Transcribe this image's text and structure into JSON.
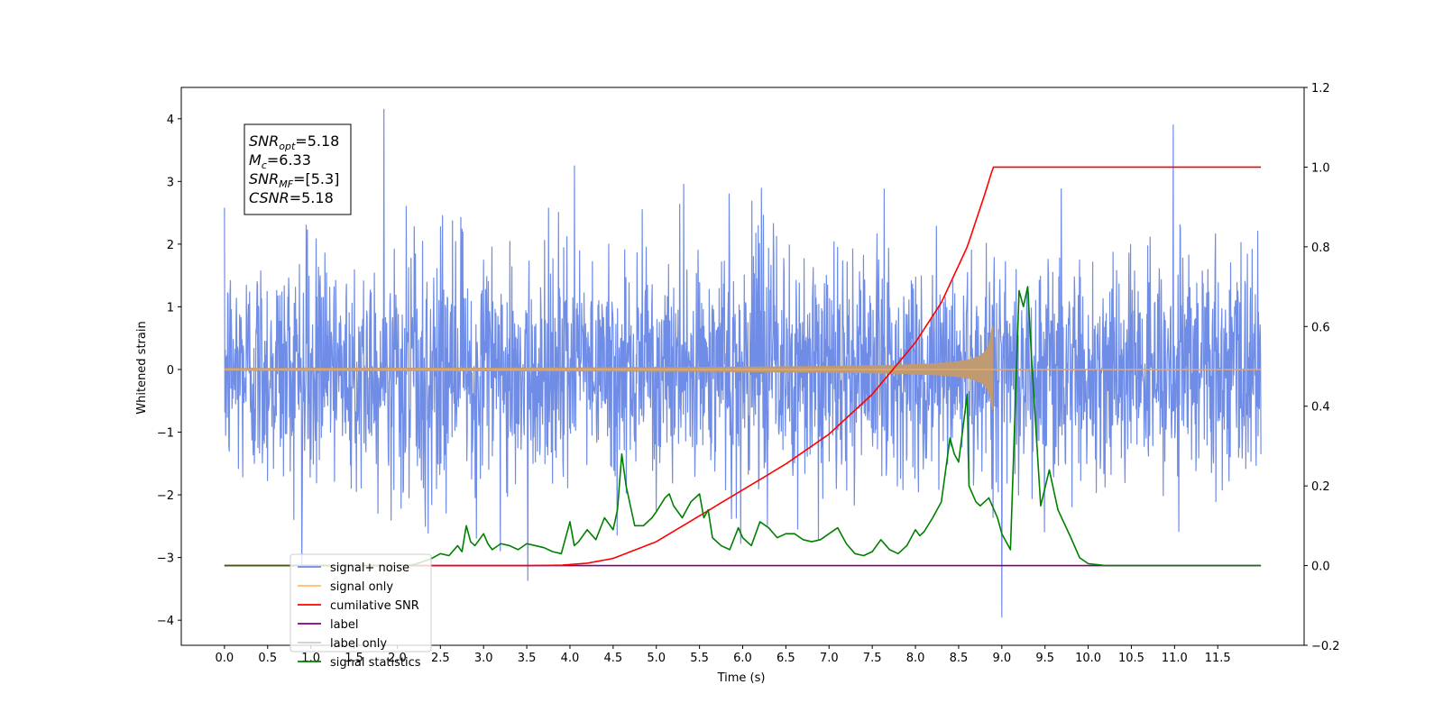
{
  "chart_data": {
    "type": "line",
    "xlabel": "Time (s)",
    "ylabel": "Whitened strain",
    "ylabel_right": "",
    "xlim": [
      -0.5,
      12.5
    ],
    "ylim": [
      -4.4,
      4.5
    ],
    "ylim_right": [
      -0.2,
      1.2
    ],
    "x_ticks": [
      0.0,
      0.5,
      1.0,
      1.5,
      2.0,
      2.5,
      3.0,
      3.5,
      4.0,
      4.5,
      5.0,
      5.5,
      6.0,
      6.5,
      7.0,
      7.5,
      8.0,
      8.5,
      9.0,
      9.5,
      10.0,
      10.5,
      11.0,
      11.5
    ],
    "x_tick_labels": [
      "0.0",
      "0.5",
      "1.0",
      "1.5",
      "2.0",
      "2.5",
      "3.0",
      "3.5",
      "4.0",
      "4.5",
      "5.0",
      "5.5",
      "6.0",
      "6.5",
      "7.0",
      "7.5",
      "8.0",
      "8.5",
      "9.0",
      "9.5",
      "10.0",
      "10.5",
      "11.0",
      "11.5"
    ],
    "y_ticks": [
      -4,
      -3,
      -2,
      -1,
      0,
      1,
      2,
      3,
      4
    ],
    "y_tick_labels": [
      "−4",
      "−3",
      "−2",
      "−1",
      "0",
      "1",
      "2",
      "3",
      "4"
    ],
    "y_ticks_right": [
      -0.2,
      0.0,
      0.2,
      0.4,
      0.6,
      0.8,
      1.0,
      1.2
    ],
    "y_tick_labels_right": [
      "−0.2",
      "0.0",
      "0.2",
      "0.4",
      "0.6",
      "0.8",
      "1.0",
      "1.2"
    ],
    "grid": false,
    "legend_position": "bottom-left",
    "annotation": {
      "lines": [
        {
          "symbol": "SNR",
          "sub": "opt",
          "value": "=5.18"
        },
        {
          "symbol": "M",
          "sub": "c",
          "value": "=6.33"
        },
        {
          "symbol": "SNR",
          "sub": "MF",
          "value": "=[5.3]"
        },
        {
          "symbol": "CSNR",
          "sub": "",
          "value": "=5.18"
        }
      ]
    },
    "series": [
      {
        "name": "signal+ noise",
        "color": "#6f8ce6",
        "axis": "left",
        "kind": "noise",
        "x_range": [
          0.0,
          12.0
        ],
        "amplitude_typical": 1.5,
        "max_value": 4.15,
        "min_value": -3.95
      },
      {
        "name": "signal only",
        "color": "#ffbb66",
        "axis": "left",
        "kind": "chirp",
        "x_range": [
          0.0,
          12.0
        ],
        "merger_time": 8.9,
        "peak_amplitude": 0.7
      },
      {
        "name": "cumilative SNR",
        "color": "#ff0000",
        "axis": "right",
        "x": [
          0.0,
          3.0,
          3.5,
          3.9,
          4.2,
          4.5,
          5.0,
          5.5,
          6.0,
          6.5,
          7.0,
          7.5,
          8.0,
          8.3,
          8.6,
          8.8,
          8.9,
          12.0
        ],
        "values": [
          0.0,
          0.0,
          0.0,
          0.001,
          0.006,
          0.018,
          0.06,
          0.125,
          0.19,
          0.255,
          0.33,
          0.43,
          0.56,
          0.66,
          0.8,
          0.93,
          1.0,
          1.0
        ]
      },
      {
        "name": "label",
        "color": "#800080",
        "axis": "right",
        "x": [
          0.0,
          12.0
        ],
        "values": [
          0.0,
          0.0
        ]
      },
      {
        "name": "label only",
        "color": "#cccccc",
        "axis": "right",
        "x": [
          0.0,
          12.0
        ],
        "values": [
          0.0,
          0.0
        ]
      },
      {
        "name": "signal statistics",
        "color": "#008000",
        "axis": "right",
        "x": [
          0.0,
          2.1,
          2.2,
          2.3,
          2.4,
          2.5,
          2.6,
          2.7,
          2.75,
          2.8,
          2.85,
          2.9,
          3.0,
          3.05,
          3.1,
          3.2,
          3.3,
          3.4,
          3.5,
          3.6,
          3.7,
          3.8,
          3.9,
          4.0,
          4.05,
          4.1,
          4.2,
          4.3,
          4.4,
          4.5,
          4.55,
          4.6,
          4.65,
          4.75,
          4.85,
          4.95,
          5.0,
          5.1,
          5.15,
          5.2,
          5.3,
          5.4,
          5.5,
          5.55,
          5.6,
          5.65,
          5.75,
          5.85,
          5.95,
          6.0,
          6.1,
          6.2,
          6.3,
          6.4,
          6.5,
          6.6,
          6.7,
          6.8,
          6.9,
          7.0,
          7.1,
          7.2,
          7.3,
          7.4,
          7.5,
          7.6,
          7.7,
          7.8,
          7.9,
          8.0,
          8.05,
          8.1,
          8.2,
          8.3,
          8.4,
          8.45,
          8.5,
          8.6,
          8.62,
          8.7,
          8.75,
          8.85,
          8.95,
          9.0,
          9.1,
          9.2,
          9.25,
          9.3,
          9.35,
          9.45,
          9.55,
          9.65,
          9.8,
          9.9,
          10.0,
          10.2,
          10.6,
          11.0,
          11.5,
          12.0
        ],
        "values": [
          0.0,
          0.0,
          0.003,
          0.01,
          0.018,
          0.03,
          0.025,
          0.05,
          0.035,
          0.1,
          0.06,
          0.05,
          0.08,
          0.055,
          0.04,
          0.055,
          0.05,
          0.04,
          0.055,
          0.05,
          0.045,
          0.035,
          0.03,
          0.11,
          0.05,
          0.06,
          0.09,
          0.065,
          0.12,
          0.09,
          0.14,
          0.28,
          0.2,
          0.1,
          0.1,
          0.12,
          0.135,
          0.17,
          0.18,
          0.15,
          0.12,
          0.16,
          0.18,
          0.12,
          0.14,
          0.07,
          0.05,
          0.04,
          0.095,
          0.07,
          0.05,
          0.11,
          0.095,
          0.07,
          0.08,
          0.08,
          0.065,
          0.06,
          0.065,
          0.08,
          0.095,
          0.055,
          0.03,
          0.025,
          0.035,
          0.065,
          0.04,
          0.03,
          0.05,
          0.09,
          0.075,
          0.085,
          0.12,
          0.16,
          0.32,
          0.28,
          0.26,
          0.43,
          0.2,
          0.16,
          0.15,
          0.17,
          0.12,
          0.08,
          0.04,
          0.69,
          0.65,
          0.7,
          0.5,
          0.15,
          0.24,
          0.14,
          0.07,
          0.02,
          0.005,
          0.0,
          0.0,
          0.0,
          0.0,
          0.0
        ]
      }
    ]
  }
}
